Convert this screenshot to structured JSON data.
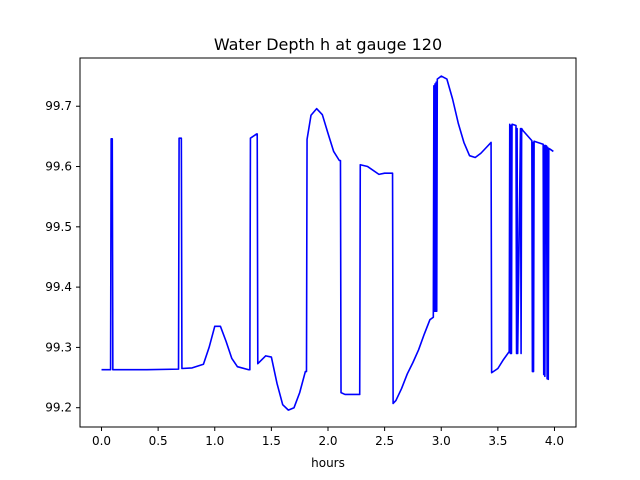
{
  "chart_data": {
    "type": "line",
    "title": "Water Depth h at gauge 120",
    "xlabel": "hours",
    "ylabel": "",
    "xlim": [
      -0.19,
      4.19
    ],
    "ylim": [
      99.168,
      99.78
    ],
    "xticks": [
      0.0,
      0.5,
      1.0,
      1.5,
      2.0,
      2.5,
      3.0,
      3.5,
      4.0
    ],
    "xtick_labels": [
      "0.0",
      "0.5",
      "1.0",
      "1.5",
      "2.0",
      "2.5",
      "3.0",
      "3.5",
      "4.0"
    ],
    "yticks": [
      99.2,
      99.3,
      99.4,
      99.5,
      99.6,
      99.7
    ],
    "ytick_labels": [
      "99.2",
      "99.3",
      "99.4",
      "99.5",
      "99.6",
      "99.7"
    ],
    "grid": false,
    "series": [
      {
        "color": "#0000ff",
        "x": [
          0.0,
          0.08,
          0.085,
          0.095,
          0.1,
          0.2,
          0.4,
          0.68,
          0.685,
          0.705,
          0.71,
          0.8,
          0.9,
          0.95,
          1.0,
          1.05,
          1.1,
          1.15,
          1.2,
          1.3,
          1.31,
          1.315,
          1.37,
          1.375,
          1.38,
          1.45,
          1.5,
          1.55,
          1.6,
          1.65,
          1.7,
          1.75,
          1.8,
          1.81,
          1.815,
          1.85,
          1.9,
          1.95,
          2.0,
          2.05,
          2.1,
          2.11,
          2.115,
          2.15,
          2.2,
          2.27,
          2.28,
          2.285,
          2.35,
          2.45,
          2.5,
          2.57,
          2.575,
          2.6,
          2.65,
          2.7,
          2.75,
          2.8,
          2.85,
          2.9,
          2.93,
          2.935,
          2.94,
          2.945,
          2.95,
          2.955,
          2.96,
          2.965,
          3.0,
          3.05,
          3.1,
          3.15,
          3.2,
          3.25,
          3.3,
          3.35,
          3.4,
          3.44,
          3.445,
          3.5,
          3.55,
          3.6,
          3.605,
          3.61,
          3.615,
          3.62,
          3.625,
          3.63,
          3.66,
          3.665,
          3.67,
          3.675,
          3.7,
          3.705,
          3.71,
          3.72,
          3.8,
          3.805,
          3.81,
          3.815,
          3.82,
          3.85,
          3.9,
          3.905,
          3.91,
          3.915,
          3.92,
          3.93,
          3.935,
          3.94,
          3.945,
          3.95,
          3.96,
          3.99
        ],
        "y": [
          99.263,
          99.263,
          99.646,
          99.646,
          99.263,
          99.263,
          99.263,
          99.264,
          99.647,
          99.647,
          99.265,
          99.266,
          99.272,
          99.3,
          99.335,
          99.335,
          99.31,
          99.282,
          99.268,
          99.263,
          99.263,
          99.647,
          99.654,
          99.654,
          99.273,
          99.286,
          99.284,
          99.24,
          99.205,
          99.196,
          99.2,
          99.225,
          99.26,
          99.26,
          99.645,
          99.685,
          99.696,
          99.686,
          99.655,
          99.625,
          99.61,
          99.61,
          99.225,
          99.222,
          99.222,
          99.222,
          99.222,
          99.603,
          99.6,
          99.587,
          99.589,
          99.589,
          99.207,
          99.212,
          99.232,
          99.256,
          99.275,
          99.296,
          99.322,
          99.346,
          99.35,
          99.734,
          99.36,
          99.737,
          99.36,
          99.74,
          99.36,
          99.745,
          99.75,
          99.745,
          99.712,
          99.672,
          99.64,
          99.618,
          99.615,
          99.622,
          99.632,
          99.64,
          99.258,
          99.265,
          99.28,
          99.293,
          99.67,
          99.29,
          99.668,
          99.29,
          99.67,
          99.67,
          99.668,
          99.29,
          99.663,
          99.29,
          99.663,
          99.29,
          99.663,
          99.66,
          99.643,
          99.26,
          99.64,
          99.26,
          99.642,
          99.64,
          99.637,
          99.255,
          99.635,
          99.252,
          99.635,
          99.634,
          99.248,
          99.632,
          99.247,
          99.63,
          99.629,
          99.625
        ]
      }
    ]
  }
}
